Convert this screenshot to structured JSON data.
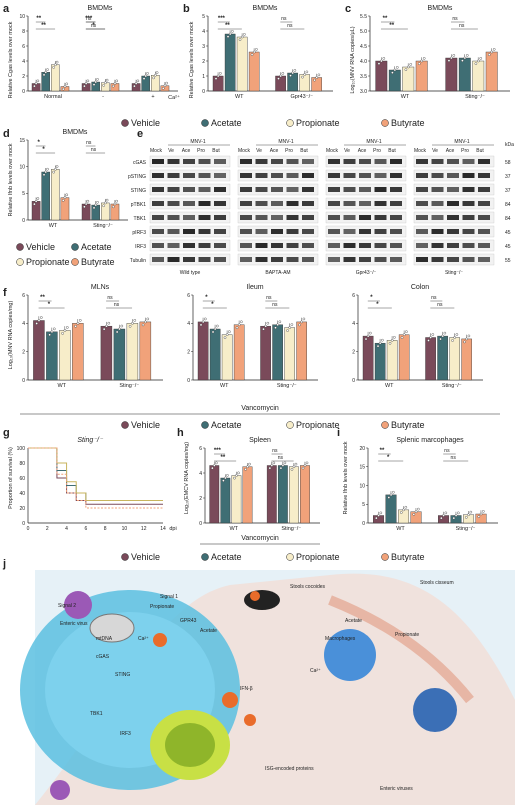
{
  "colors": {
    "vehicle": "#7a4a5a",
    "acetate": "#3f6e74",
    "propionate": "#f7edc9",
    "butyrate": "#f1a27a",
    "panel_j_bg": "#e9f3f8"
  },
  "panels": {
    "a": {
      "letter": "a",
      "title": "BMDMs",
      "ylabel": "Relative Cgas levels over mock",
      "x_groups": [
        "Normal",
        "-",
        "+"
      ],
      "x_suffix": "Ca²⁺",
      "yticks": [
        "0",
        "2",
        "4",
        "6",
        "8",
        "10"
      ],
      "sig": [
        "**",
        "**",
        "ns",
        "ns",
        "***",
        "*"
      ]
    },
    "b": {
      "letter": "b",
      "title": "BMDMs",
      "ylabel": "Relative Cgas levels over mock",
      "x_groups": [
        "WT",
        "Gpr43⁻/⁻"
      ],
      "yticks": [
        "0",
        "1",
        "2",
        "3",
        "4",
        "5"
      ],
      "sig": [
        "***",
        "**",
        "ns",
        "ns"
      ]
    },
    "c": {
      "letter": "c",
      "title": "BMDMs",
      "ylabel": "Log₁₀(MNV RNA copies/μL)",
      "x_groups": [
        "WT",
        "Sting⁻/⁻"
      ],
      "yticks": [
        "3.0",
        "3.5",
        "4.0",
        "4.5",
        "5.0",
        "5.5"
      ],
      "sig": [
        "**",
        "**",
        "ns",
        "ns"
      ]
    },
    "d": {
      "letter": "d",
      "title": "BMDMs",
      "ylabel": "Relative Ifnb levels over mock",
      "x_groups": [
        "WT",
        "Sting⁻/⁻"
      ],
      "yticks": [
        "0",
        "5",
        "10",
        "15"
      ],
      "sig": [
        "*",
        "*",
        "ns",
        "ns"
      ]
    },
    "e": {
      "letter": "e",
      "kda": "kDa",
      "header": "MNV-1",
      "lanes": [
        "Mock",
        "Ve",
        "Ace",
        "Pro",
        "But"
      ],
      "rows": [
        "cGAS",
        "pSTING",
        "STING",
        "pTBK1",
        "TBK1",
        "pIRF3",
        "IRF3",
        "Tubulin"
      ],
      "kda_values": [
        "58",
        "37",
        "37",
        "84",
        "84",
        "45",
        "45",
        "55"
      ],
      "conditions": [
        "Wild type",
        "BAPTA-AM",
        "Gpr43⁻/⁻",
        "Sting⁻/⁻"
      ]
    },
    "f": {
      "letter": "f",
      "subtitles": [
        "MLNs",
        "Ileum",
        "Colon"
      ],
      "ylabel": "Log₁₀(MNV RNA copies/mg)",
      "x_groups": [
        "WT",
        "Sting⁻/⁻"
      ],
      "yticks": [
        "0",
        "2",
        "4",
        "6"
      ],
      "bottom": "Vancomycin",
      "sig": [
        [
          "**",
          "*",
          "ns",
          "ns"
        ],
        [
          "*",
          "*",
          "ns",
          "ns"
        ],
        [
          "*",
          "*",
          "ns",
          "ns"
        ]
      ]
    },
    "g": {
      "letter": "g",
      "title": "Sting⁻/⁻",
      "ylabel": "Proportion of survival (%)",
      "yticks": [
        "0",
        "20",
        "40",
        "60",
        "80",
        "100"
      ],
      "xticks": [
        "0",
        "2",
        "4",
        "6",
        "8",
        "10",
        "12",
        "14"
      ],
      "xlabel": "dpi"
    },
    "h": {
      "letter": "h",
      "title": "Spleen",
      "ylabel": "Log₁₀(EMCV RNA copies/mg)",
      "x_groups": [
        "WT",
        "Sting⁻/⁻"
      ],
      "yticks": [
        "0",
        "2",
        "4",
        "6"
      ],
      "bottom": "Vancomycin",
      "sig": [
        "***",
        "**",
        "ns",
        "ns"
      ]
    },
    "i": {
      "letter": "i",
      "title": "Splenic marcophages",
      "ylabel": "Relative Ifnb levels over mock",
      "x_groups": [
        "WT",
        "Sting⁻/⁻"
      ],
      "yticks": [
        "0",
        "5",
        "10",
        "15",
        "20"
      ],
      "sig": [
        "**",
        "*",
        "ns",
        "ns"
      ]
    },
    "j": {
      "letter": "j",
      "labels": [
        "Signal 2",
        "Enteric virus",
        "Signal 1",
        "Propionate",
        "Acetate",
        "GPR43",
        "Ca²⁺",
        "cGAS",
        "STING",
        "TBK1",
        "IRF3",
        "IFN-β",
        "mtDNA",
        "Macrophages",
        "Propionate",
        "Acetate",
        "Stools cocoides",
        "Stools cisseum",
        "Ca²⁺",
        "ISG-encoded proteins",
        "Enteric viruses"
      ]
    }
  },
  "legend": {
    "items": [
      "Vehicle",
      "Acetate",
      "Propionate",
      "Butyrate"
    ]
  },
  "chart_data": [
    {
      "type": "bar",
      "panel": "a",
      "categories": [
        "Normal",
        "-",
        "+"
      ],
      "series": [
        {
          "name": "Vehicle",
          "values": [
            1.0,
            1.0,
            1.0
          ]
        },
        {
          "name": "Acetate",
          "values": [
            2.5,
            1.2,
            2.0
          ]
        },
        {
          "name": "Propionate",
          "values": [
            3.5,
            1.1,
            2.1
          ]
        },
        {
          "name": "Butyrate",
          "values": [
            0.6,
            1.0,
            0.7
          ]
        }
      ],
      "ylim": [
        0,
        10
      ]
    },
    {
      "type": "bar",
      "panel": "b",
      "categories": [
        "WT",
        "Gpr43-/-"
      ],
      "series": [
        {
          "name": "Vehicle",
          "values": [
            1.0,
            1.0
          ]
        },
        {
          "name": "Acetate",
          "values": [
            3.8,
            1.2
          ]
        },
        {
          "name": "Propionate",
          "values": [
            3.6,
            1.1
          ]
        },
        {
          "name": "Butyrate",
          "values": [
            2.6,
            0.9
          ]
        }
      ],
      "ylim": [
        0,
        5
      ]
    },
    {
      "type": "bar",
      "panel": "c",
      "categories": [
        "WT",
        "Sting-/-"
      ],
      "series": [
        {
          "name": "Vehicle",
          "values": [
            4.0,
            4.1
          ]
        },
        {
          "name": "Acetate",
          "values": [
            3.7,
            4.1
          ]
        },
        {
          "name": "Propionate",
          "values": [
            3.8,
            4.0
          ]
        },
        {
          "name": "Butyrate",
          "values": [
            4.0,
            4.3
          ]
        }
      ],
      "ylim": [
        3.0,
        5.5
      ]
    },
    {
      "type": "bar",
      "panel": "d",
      "categories": [
        "WT",
        "Sting-/-"
      ],
      "series": [
        {
          "name": "Vehicle",
          "values": [
            3.5,
            3.0
          ]
        },
        {
          "name": "Acetate",
          "values": [
            9.0,
            2.8
          ]
        },
        {
          "name": "Propionate",
          "values": [
            9.5,
            3.2
          ]
        },
        {
          "name": "Butyrate",
          "values": [
            4.2,
            3.0
          ]
        }
      ],
      "ylim": [
        0,
        15
      ]
    },
    {
      "type": "bar",
      "panel": "f-MLNs",
      "categories": [
        "WT",
        "Sting-/-"
      ],
      "series": [
        {
          "name": "Vehicle",
          "values": [
            4.2,
            3.8
          ]
        },
        {
          "name": "Acetate",
          "values": [
            3.4,
            3.6
          ]
        },
        {
          "name": "Propionate",
          "values": [
            3.5,
            4.0
          ]
        },
        {
          "name": "Butyrate",
          "values": [
            4.0,
            4.1
          ]
        }
      ],
      "ylim": [
        0,
        6
      ]
    },
    {
      "type": "bar",
      "panel": "f-Ileum",
      "categories": [
        "WT",
        "Sting-/-"
      ],
      "series": [
        {
          "name": "Vehicle",
          "values": [
            4.1,
            3.8
          ]
        },
        {
          "name": "Acetate",
          "values": [
            3.6,
            3.9
          ]
        },
        {
          "name": "Propionate",
          "values": [
            3.2,
            3.7
          ]
        },
        {
          "name": "Butyrate",
          "values": [
            3.9,
            4.1
          ]
        }
      ],
      "ylim": [
        0,
        6
      ]
    },
    {
      "type": "bar",
      "panel": "f-Colon",
      "categories": [
        "WT",
        "Sting-/-"
      ],
      "series": [
        {
          "name": "Vehicle",
          "values": [
            3.1,
            3.0
          ]
        },
        {
          "name": "Acetate",
          "values": [
            2.6,
            3.1
          ]
        },
        {
          "name": "Propionate",
          "values": [
            2.8,
            3.0
          ]
        },
        {
          "name": "Butyrate",
          "values": [
            3.2,
            2.9
          ]
        }
      ],
      "ylim": [
        0,
        6
      ]
    },
    {
      "type": "line",
      "panel": "g",
      "x": [
        0,
        2,
        3,
        4,
        5,
        6,
        7,
        14
      ],
      "series": [
        {
          "name": "Vehicle",
          "values": [
            100,
            100,
            60,
            40,
            30,
            25,
            25,
            25
          ]
        },
        {
          "name": "Acetate",
          "values": [
            100,
            100,
            70,
            50,
            40,
            30,
            30,
            30
          ]
        },
        {
          "name": "Propionate",
          "values": [
            100,
            100,
            80,
            55,
            40,
            30,
            30,
            30
          ]
        },
        {
          "name": "Butyrate",
          "values": [
            100,
            100,
            65,
            40,
            30,
            20,
            20,
            20
          ]
        }
      ],
      "ylim": [
        0,
        100
      ],
      "xlim": [
        0,
        14
      ]
    },
    {
      "type": "bar",
      "panel": "h",
      "categories": [
        "WT",
        "Sting-/-"
      ],
      "series": [
        {
          "name": "Vehicle",
          "values": [
            4.6,
            4.6
          ]
        },
        {
          "name": "Acetate",
          "values": [
            3.6,
            4.6
          ]
        },
        {
          "name": "Propionate",
          "values": [
            3.8,
            4.5
          ]
        },
        {
          "name": "Butyrate",
          "values": [
            4.5,
            4.6
          ]
        }
      ],
      "ylim": [
        0,
        6
      ]
    },
    {
      "type": "bar",
      "panel": "i",
      "categories": [
        "WT",
        "Sting-/-"
      ],
      "series": [
        {
          "name": "Vehicle",
          "values": [
            2.0,
            2.0
          ]
        },
        {
          "name": "Acetate",
          "values": [
            7.5,
            2.0
          ]
        },
        {
          "name": "Propionate",
          "values": [
            3.5,
            2.2
          ]
        },
        {
          "name": "Butyrate",
          "values": [
            3.0,
            2.4
          ]
        }
      ],
      "ylim": [
        0,
        20
      ]
    }
  ]
}
